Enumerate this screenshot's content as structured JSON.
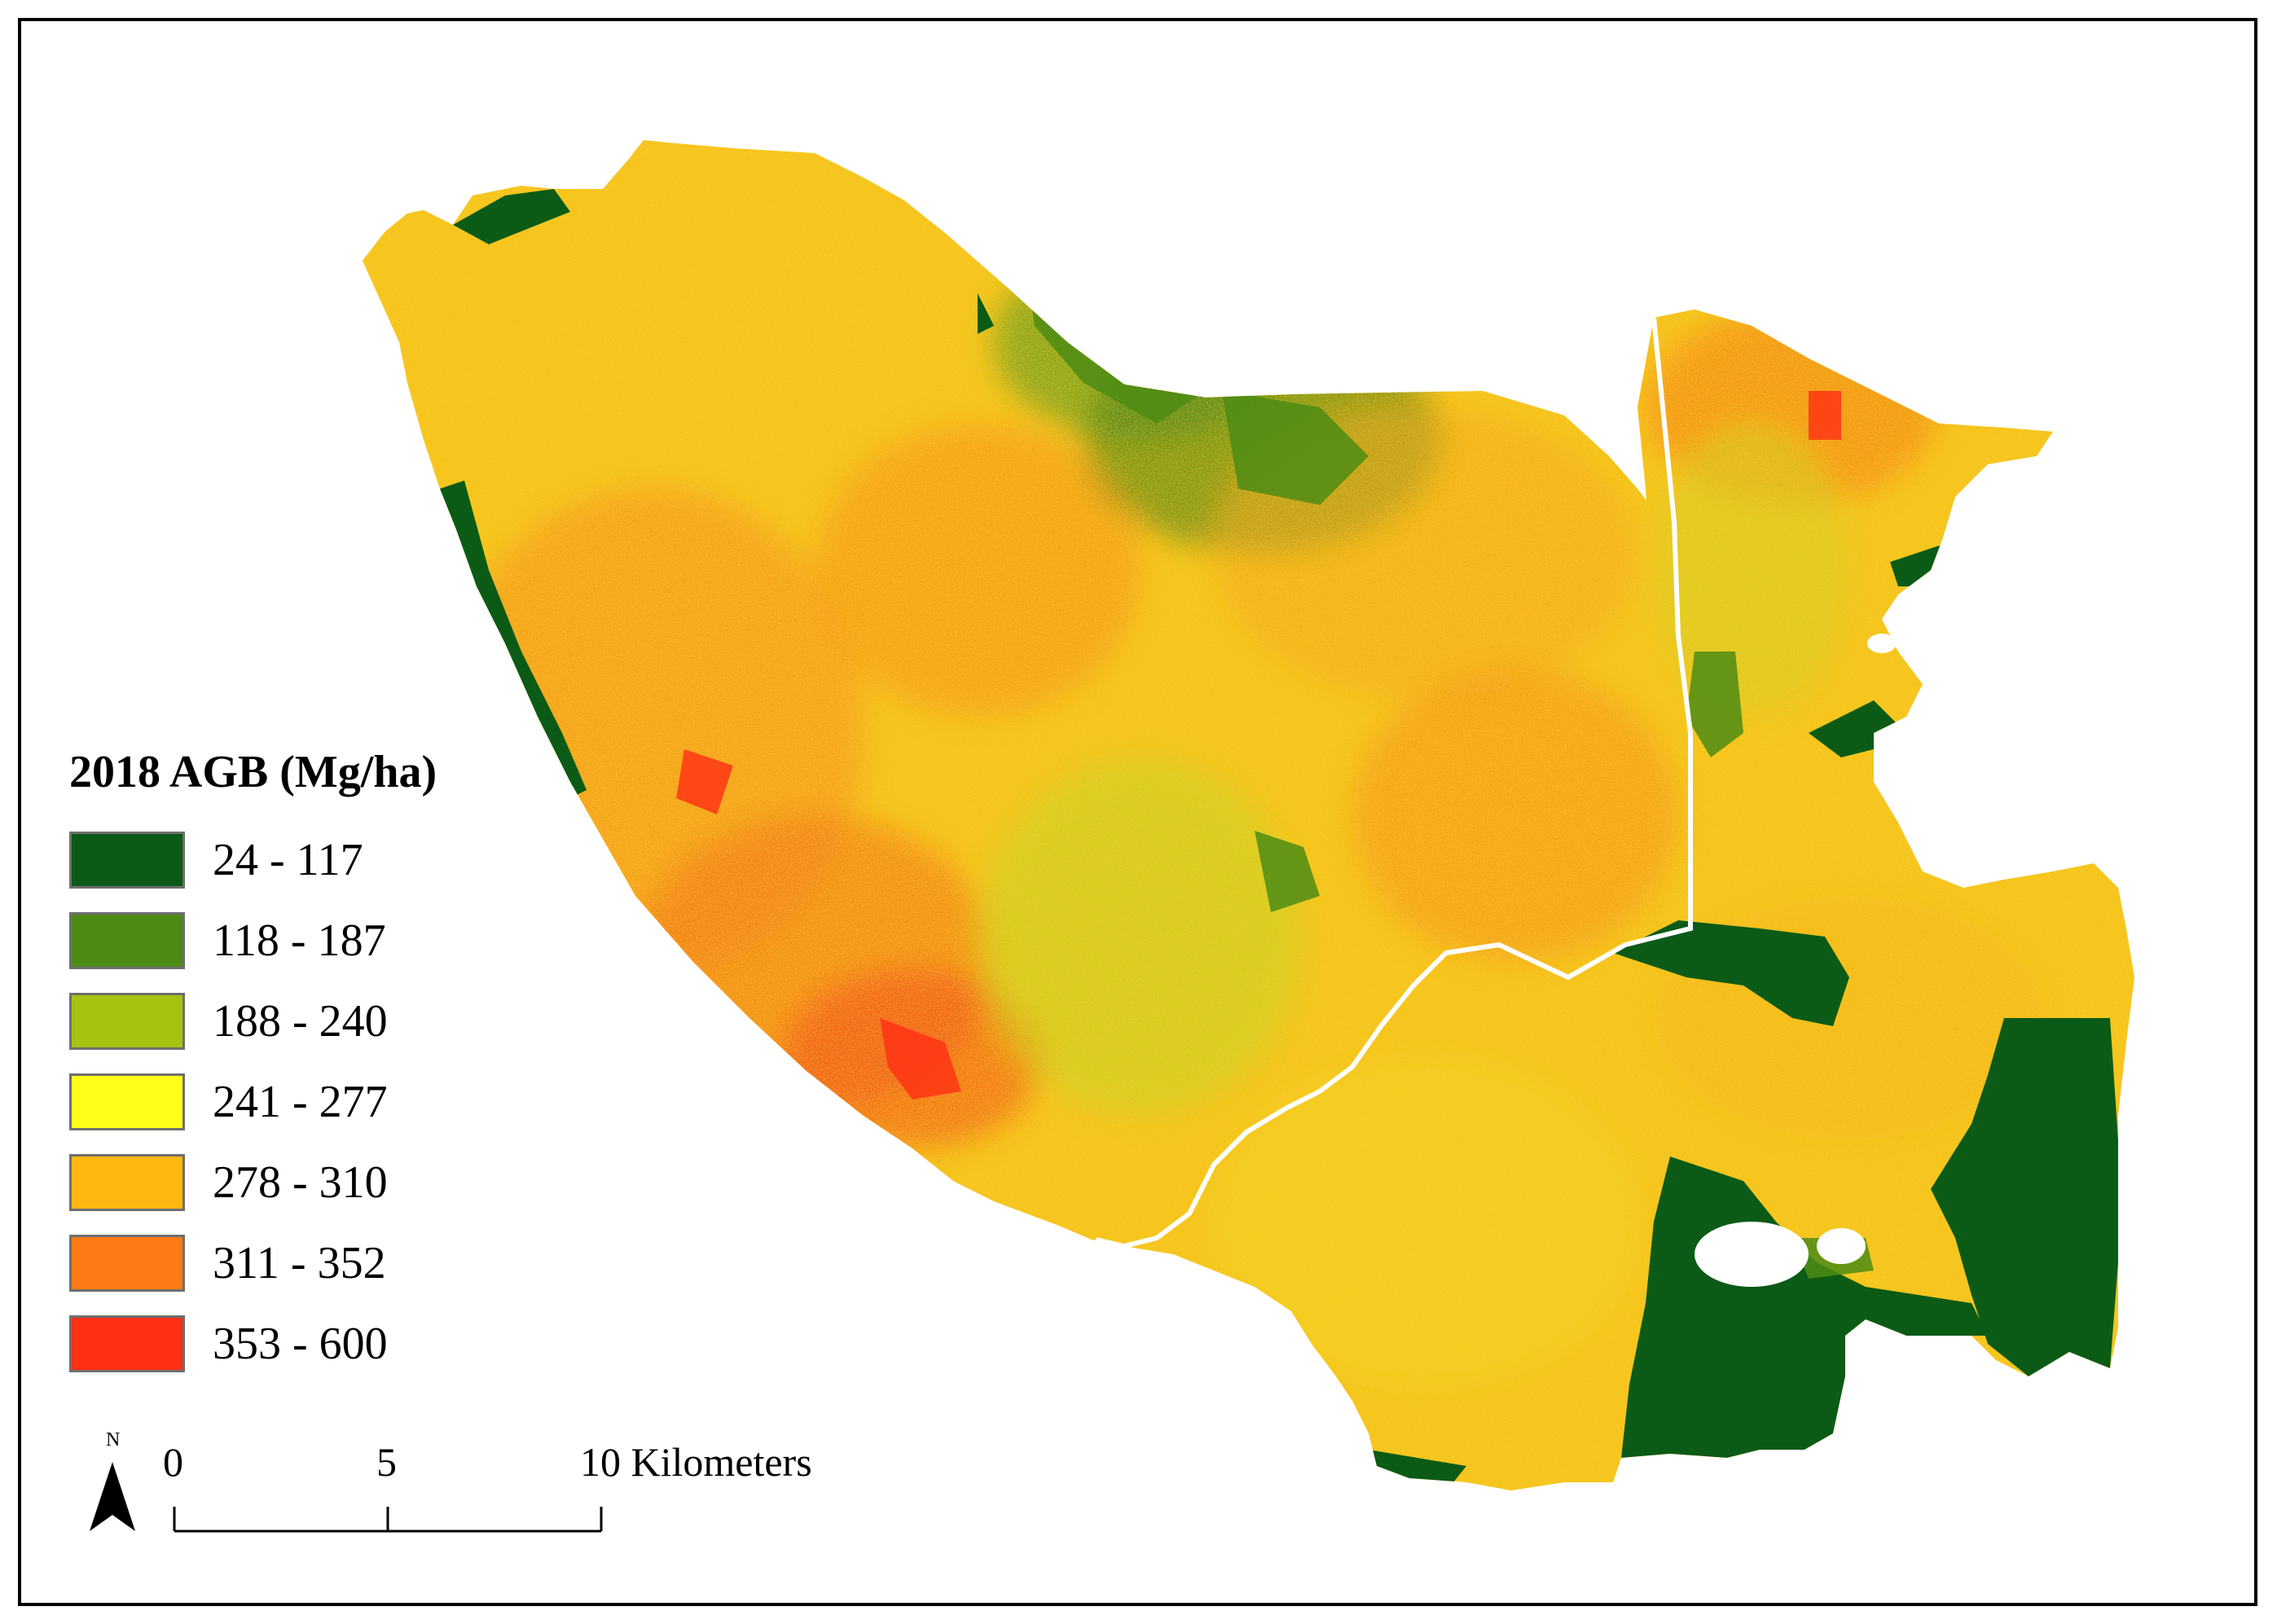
{
  "legend": {
    "title": "2018 AGB (Mg/ha)",
    "classes": [
      {
        "label": "24 - 117",
        "color": "#0b5b16"
      },
      {
        "label": "118 - 187",
        "color": "#4d8c14"
      },
      {
        "label": "188 - 240",
        "color": "#a7c312"
      },
      {
        "label": "241 - 277",
        "color": "#ffff19"
      },
      {
        "label": "278 - 310",
        "color": "#ffb810"
      },
      {
        "label": "311 - 352",
        "color": "#ff7a14"
      },
      {
        "label": "353 - 600",
        "color": "#ff3014"
      }
    ]
  },
  "scale_bar": {
    "ticks": [
      "0",
      "5",
      "10 Kilometers"
    ]
  },
  "north_arrow": {
    "label": "N",
    "icon": "north-arrow-icon"
  }
}
